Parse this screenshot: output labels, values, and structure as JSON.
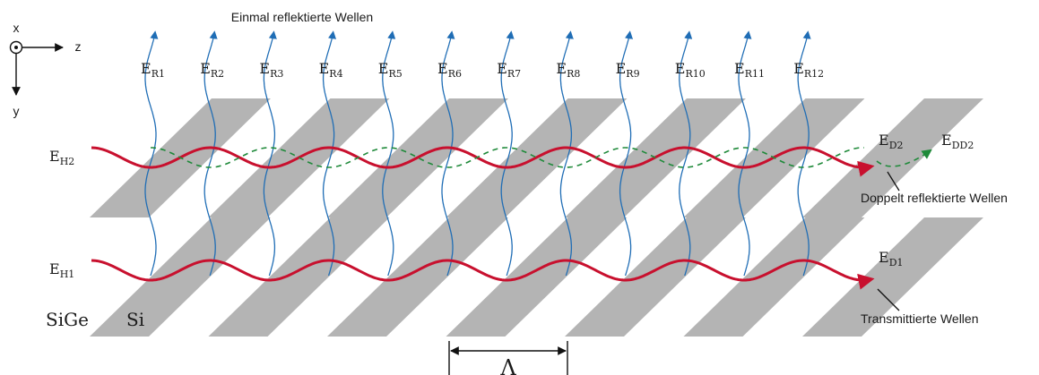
{
  "axes": {
    "x": "x",
    "z": "z",
    "y": "y"
  },
  "top_caption": "Einmal reflektierte Wellen",
  "reflected_labels": [
    {
      "main": "E",
      "sub": "R1"
    },
    {
      "main": "E",
      "sub": "R2"
    },
    {
      "main": "E",
      "sub": "R3"
    },
    {
      "main": "E",
      "sub": "R4"
    },
    {
      "main": "E",
      "sub": "R5"
    },
    {
      "main": "E",
      "sub": "R6"
    },
    {
      "main": "E",
      "sub": "R7"
    },
    {
      "main": "E",
      "sub": "R8"
    },
    {
      "main": "E",
      "sub": "R9"
    },
    {
      "main": "E",
      "sub": "R10"
    },
    {
      "main": "E",
      "sub": "R11"
    },
    {
      "main": "E",
      "sub": "R12"
    }
  ],
  "incident_labels": {
    "h2": {
      "main": "E",
      "sub": "H2"
    },
    "h1": {
      "main": "E",
      "sub": "H1"
    }
  },
  "output_labels": {
    "d2": {
      "main": "E",
      "sub": "D2"
    },
    "dd2": {
      "main": "E",
      "sub": "DD2"
    },
    "d1": {
      "main": "E",
      "sub": "D1"
    }
  },
  "annotations": {
    "double_reflected": "Doppelt reflektierte Wellen",
    "transmitted": "Transmittierte Wellen"
  },
  "materials": {
    "sige": "SiGe",
    "si": "Si"
  },
  "period_symbol": "Λ",
  "colors": {
    "layer": "#b4b4b4",
    "wave_red": "#c8102e",
    "wave_blue": "#1f6db5",
    "wave_green": "#1f8a3a",
    "text": "#1a1a1a"
  }
}
